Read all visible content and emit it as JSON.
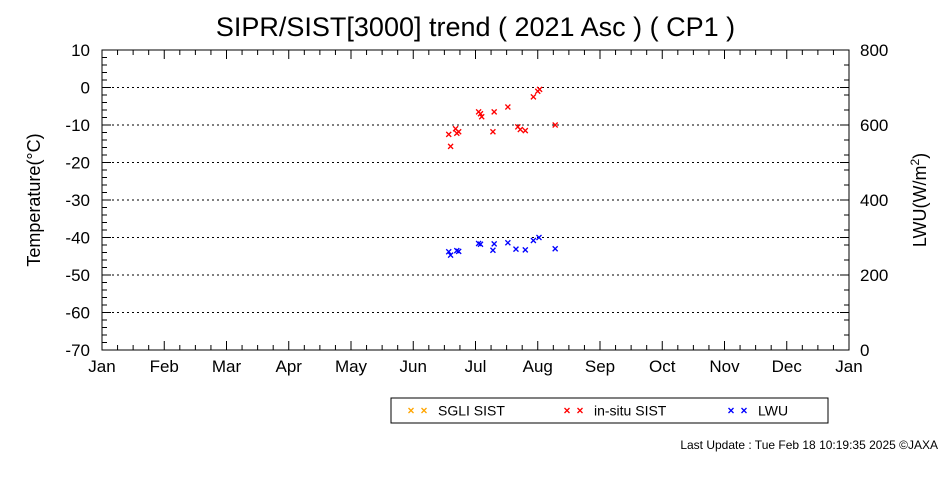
{
  "chart_data": {
    "type": "scatter",
    "title": "SIPR/SIST[3000] trend ( 2021 Asc ) ( CP1 )",
    "ylabel": "Temperature(°C)",
    "y2label_main": "LWU(W/m",
    "y2label_sup": "2",
    "y2label_end": ")",
    "ylim": [
      -70,
      10
    ],
    "y2lim": [
      0,
      800
    ],
    "yticks": [
      "10",
      "0",
      "-10",
      "-20",
      "-30",
      "-40",
      "-50",
      "-60",
      "-70"
    ],
    "y2ticks": [
      "800",
      "600",
      "400",
      "200",
      "0"
    ],
    "months": [
      "Jan",
      "Feb",
      "Mar",
      "Apr",
      "May",
      "Jun",
      "Jul",
      "Aug",
      "Sep",
      "Oct",
      "Nov",
      "Dec",
      "Jan"
    ],
    "grid": "horizontal dotted",
    "legend_position": "bottom",
    "series": [
      {
        "name": "SGLI SIST",
        "color": "#ffa500",
        "axis": "left",
        "x": [],
        "y": []
      },
      {
        "name": "in-situ SIST",
        "color": "#ff0000",
        "axis": "left",
        "x": [
          6.57,
          6.6,
          6.68,
          6.7,
          6.73,
          7.05,
          7.08,
          7.1,
          7.28,
          7.3,
          7.52,
          7.68,
          7.72,
          7.8,
          7.93,
          8.0,
          8.03,
          8.28
        ],
        "y": [
          -12.5,
          -15.7,
          -11.0,
          -12.2,
          -11.8,
          -6.5,
          -7.0,
          -7.8,
          -11.8,
          -6.5,
          -5.2,
          -10.5,
          -11.2,
          -11.5,
          -2.5,
          -1.0,
          -0.5,
          -10.0
        ]
      },
      {
        "name": "LWU",
        "color": "#0000ff",
        "axis": "right",
        "x": [
          6.57,
          6.6,
          6.7,
          6.73,
          7.05,
          7.08,
          7.28,
          7.3,
          7.52,
          7.65,
          7.8,
          7.93,
          8.02,
          8.28
        ],
        "y": [
          262,
          253,
          265,
          263,
          284,
          282,
          266,
          283,
          286,
          269,
          267,
          292,
          300,
          270
        ]
      }
    ]
  },
  "footer": {
    "last_update": "Last Update : Tue Feb 18 10:19:35 2025  ©JAXA"
  }
}
